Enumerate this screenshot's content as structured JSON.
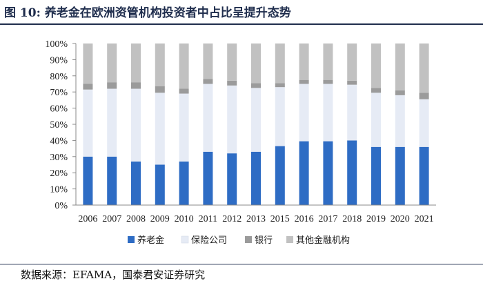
{
  "header": {
    "title": "图 10: 养老金在欧洲资管机构投资者中占比呈提升态势"
  },
  "footer": {
    "source": "数据来源：EFAMA，国泰君安证券研究"
  },
  "chart_data": {
    "type": "bar",
    "stacked": true,
    "percent": true,
    "title": "",
    "xlabel": "",
    "ylabel": "",
    "ylim": [
      0,
      100
    ],
    "y_ticks": [
      "0%",
      "10%",
      "20%",
      "30%",
      "40%",
      "50%",
      "60%",
      "70%",
      "80%",
      "90%",
      "100%"
    ],
    "categories": [
      "2006",
      "2007",
      "2008",
      "2009",
      "2010",
      "2011",
      "2012",
      "2013",
      "2015",
      "2016",
      "2017",
      "2018",
      "2019",
      "2020",
      "2021"
    ],
    "series": [
      {
        "name": "养老金",
        "color": "#2e6cc4",
        "values": [
          30,
          30,
          27,
          25,
          27,
          33,
          32,
          33,
          36.5,
          39.5,
          39.5,
          40,
          36,
          36,
          36
        ]
      },
      {
        "name": "保险公司",
        "color": "#e6ebf5",
        "values": [
          41.5,
          42,
          45,
          44.5,
          42,
          42,
          42,
          39.5,
          36.5,
          35.5,
          35.5,
          34.5,
          33.5,
          32,
          29.5
        ]
      },
      {
        "name": "银行",
        "color": "#9b9b9b",
        "values": [
          3.5,
          4,
          4,
          4,
          3,
          3,
          3,
          3,
          2.5,
          2.5,
          2.5,
          2.5,
          3,
          3,
          4
        ]
      },
      {
        "name": "其他金融机构",
        "color": "#c1c1c1",
        "values": [
          25,
          24,
          24,
          26.5,
          28,
          22,
          23,
          24.5,
          24.5,
          22.5,
          22.5,
          23,
          27.5,
          29,
          30.5
        ]
      }
    ],
    "legend_position": "bottom"
  }
}
